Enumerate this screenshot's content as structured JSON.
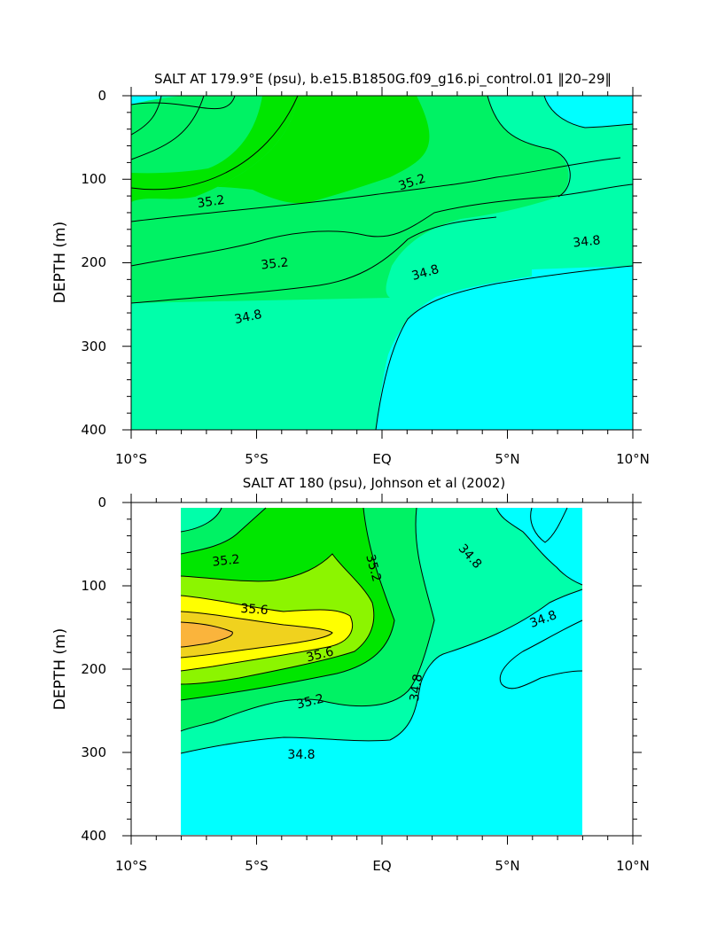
{
  "colors": {
    "s34_6": "#00ffff",
    "s34_8": "#00ffaa",
    "s35_0": "#00f264",
    "s35_2": "#00e600",
    "s35_4": "#8cf500",
    "s35_6": "#ffff00",
    "s35_8": "#f0d21e",
    "s36_0": "#fab43c"
  },
  "chart_data": [
    {
      "type": "contour",
      "title": "SALT AT 179.9°E (psu), b.e15.B1850G.f09_g16.pi_control.01 ‖20–29‖",
      "ylabel": "DEPTH (m)",
      "xlabel": "",
      "xlim": [
        -10,
        10
      ],
      "ylim": [
        400,
        0
      ],
      "xticks": [
        "10°S",
        "5°S",
        "EQ",
        "5°N",
        "10°N"
      ],
      "yticks": [
        "0",
        "100",
        "200",
        "300",
        "400"
      ],
      "data_extent": {
        "x": [
          -10,
          10
        ],
        "depth": [
          0,
          400
        ]
      },
      "contour_labels": [
        {
          "text": "35.2",
          "x": -7.2,
          "depth": 130
        },
        {
          "text": "35.2",
          "x": 1.2,
          "depth": 103
        },
        {
          "text": "35.2",
          "x": -4.5,
          "depth": 205
        },
        {
          "text": "34.8",
          "x": 8.2,
          "depth": 178
        },
        {
          "text": "34.8",
          "x": 1.2,
          "depth": 222
        },
        {
          "text": "34.8",
          "x": -4.8,
          "depth": 270
        }
      ]
    },
    {
      "type": "contour",
      "title": "SALT AT 180 (psu), Johnson et al (2002)",
      "ylabel": "DEPTH (m)",
      "xlabel": "",
      "xlim": [
        -10,
        10
      ],
      "ylim": [
        400,
        0
      ],
      "xticks": [
        "10°S",
        "5°S",
        "EQ",
        "5°N",
        "10°N"
      ],
      "yticks": [
        "0",
        "100",
        "200",
        "300",
        "400"
      ],
      "data_extent": {
        "x": [
          -8,
          8
        ],
        "depth": [
          8,
          400
        ]
      },
      "contour_labels": [
        {
          "text": "35.2",
          "x": -6.8,
          "depth": 65
        },
        {
          "text": "35.6",
          "x": -6.0,
          "depth": 125
        },
        {
          "text": "35.6",
          "x": -2.7,
          "depth": 180
        },
        {
          "text": "35.2",
          "x": -3.0,
          "depth": 235
        },
        {
          "text": "35.2",
          "x": 0.4,
          "depth": 87
        },
        {
          "text": "34.8",
          "x": 1.3,
          "depth": 222
        },
        {
          "text": "34.8",
          "x": 3.1,
          "depth": 60
        },
        {
          "text": "34.8",
          "x": 7.0,
          "depth": 130
        },
        {
          "text": "34.8",
          "x": -4.4,
          "depth": 303
        }
      ]
    }
  ]
}
